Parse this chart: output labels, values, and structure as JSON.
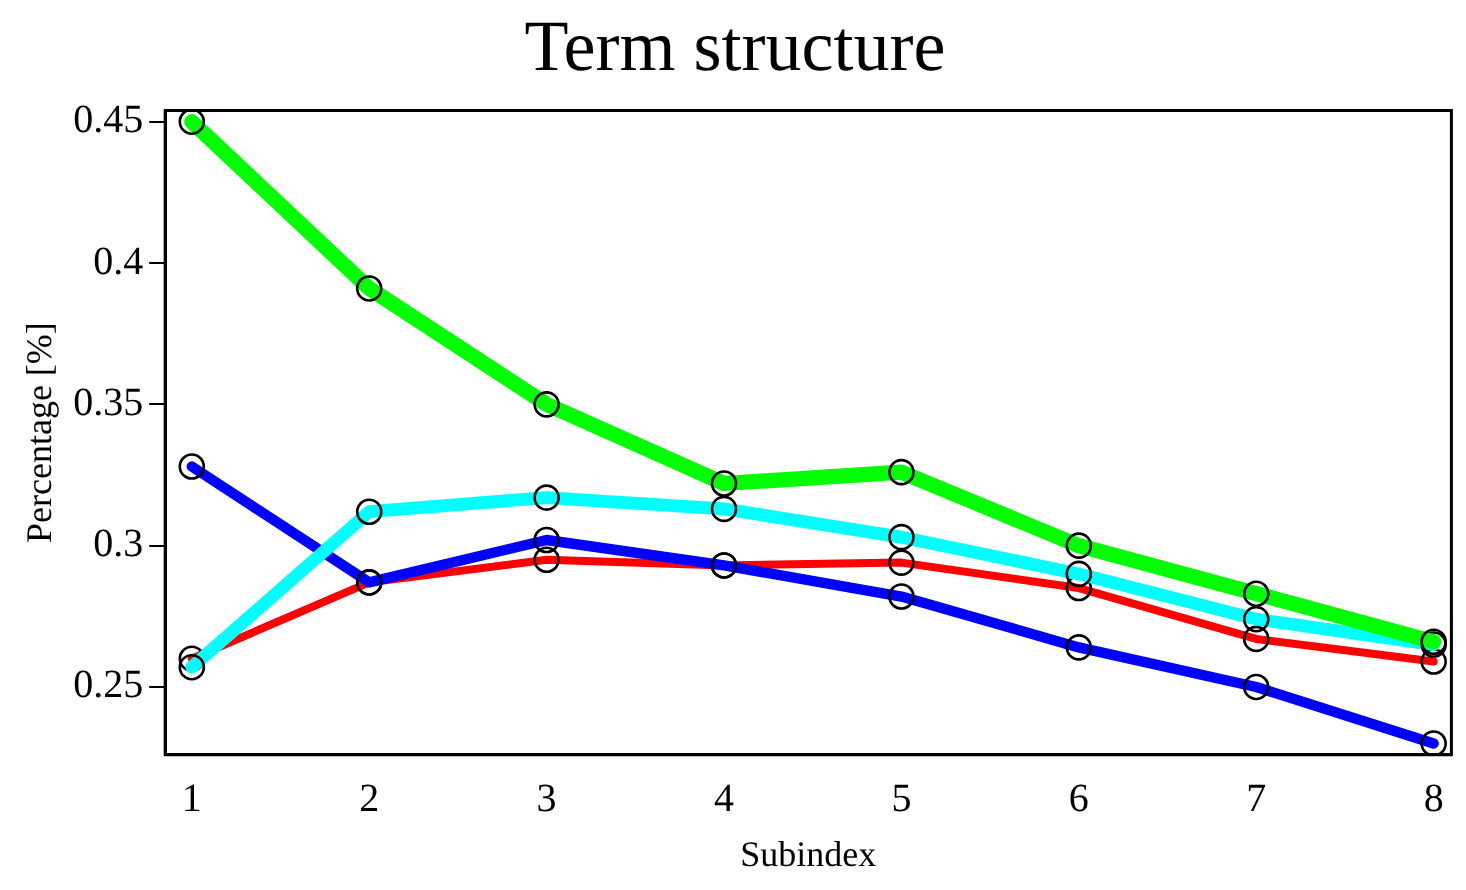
{
  "chart_data": {
    "type": "line",
    "title": "Term structure",
    "xlabel": "Subindex",
    "ylabel": "Percentage [%]",
    "x": [
      1,
      2,
      3,
      4,
      5,
      6,
      7,
      8
    ],
    "series": [
      {
        "color": "#00ff00",
        "values": [
          0.45,
          0.391,
          0.35,
          0.322,
          0.326,
          0.3,
          0.283,
          0.266
        ]
      },
      {
        "color": "#00ffff",
        "values": [
          0.257,
          0.312,
          0.317,
          0.313,
          0.303,
          0.29,
          0.274,
          0.265
        ]
      },
      {
        "color": "#0000ff",
        "values": [
          0.328,
          0.287,
          0.302,
          0.293,
          0.282,
          0.264,
          0.25,
          0.23
        ]
      },
      {
        "color": "#ff0000",
        "values": [
          0.26,
          0.287,
          0.295,
          0.293,
          0.294,
          0.285,
          0.267,
          0.259
        ]
      }
    ],
    "xlim": [
      0.85,
      8.1
    ],
    "xticks": [
      1,
      2,
      3,
      4,
      5,
      6,
      7,
      8
    ],
    "ylim": [
      0.226,
      0.454
    ],
    "yticks": [
      0.25,
      0.3,
      0.35,
      0.4,
      0.45
    ],
    "grid": false,
    "legend": false,
    "marker": "circle",
    "line_style": "solid"
  }
}
